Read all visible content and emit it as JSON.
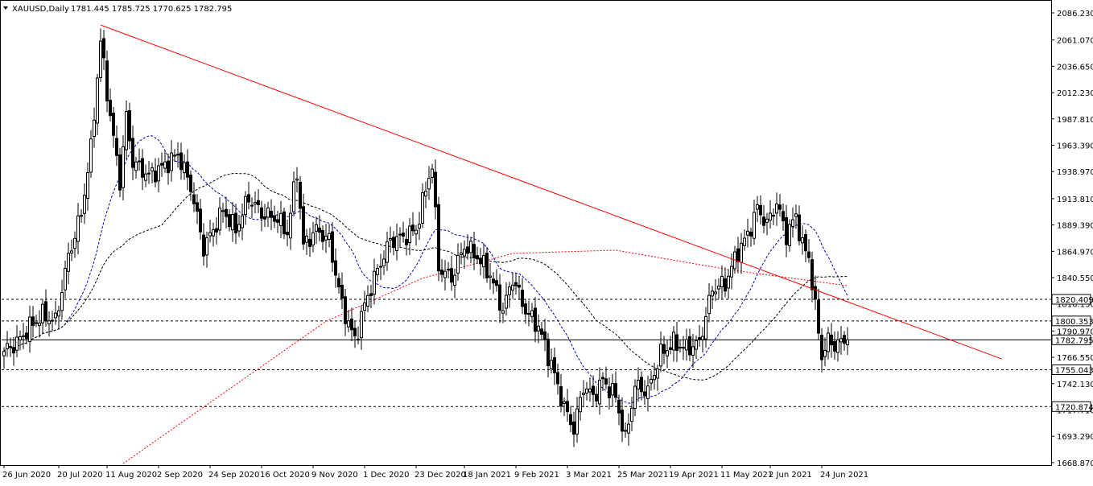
{
  "header": {
    "symbol_timeframe": "XAUUSD,Daily",
    "ohlc": "1781.445 1785.725 1770.625 1782.795",
    "dropdown_icon": "triangle-down-icon"
  },
  "chart_data": {
    "type": "candlestick",
    "symbol": "XAUUSD",
    "timeframe": "Daily",
    "ylim": [
      1668.07,
      2086.23
    ],
    "y_ticks": [
      "2086.230",
      "2061.070",
      "2036.650",
      "2012.230",
      "1987.810",
      "1963.390",
      "1938.970",
      "1913.810",
      "1889.390",
      "1864.970",
      "1840.550",
      "1816.130",
      "1790.970",
      "1766.550",
      "1742.130",
      "1717.710",
      "1693.290",
      "1668.870"
    ],
    "x_ticks": [
      "26 Jun 2020",
      "20 Jul 2020",
      "11 Aug 2020",
      "2 Sep 2020",
      "24 Sep 2020",
      "16 Oct 2020",
      "9 Nov 2020",
      "1 Dec 2020",
      "23 Dec 2020",
      "18 Jan 2021",
      "9 Feb 2021",
      "3 Mar 2021",
      "25 Mar 2021",
      "19 Apr 2021",
      "11 May 2021",
      "2 Jun 2021",
      "24 Jun 2021"
    ],
    "x_tick_index": [
      0,
      17,
      32,
      48,
      64,
      80,
      96,
      112,
      128,
      143,
      159,
      175,
      191,
      207,
      223,
      238,
      254
    ],
    "bar_count": 263,
    "key_closes": [
      [
        0,
        1772
      ],
      [
        4,
        1780
      ],
      [
        8,
        1795
      ],
      [
        12,
        1806
      ],
      [
        16,
        1800
      ],
      [
        20,
        1860
      ],
      [
        24,
        1900
      ],
      [
        27,
        1960
      ],
      [
        30,
        2060
      ],
      [
        33,
        1990
      ],
      [
        36,
        1930
      ],
      [
        38,
        1990
      ],
      [
        40,
        1948
      ],
      [
        45,
        1935
      ],
      [
        50,
        1945
      ],
      [
        54,
        1955
      ],
      [
        58,
        1925
      ],
      [
        62,
        1868
      ],
      [
        65,
        1885
      ],
      [
        68,
        1903
      ],
      [
        72,
        1885
      ],
      [
        76,
        1915
      ],
      [
        80,
        1900
      ],
      [
        85,
        1895
      ],
      [
        88,
        1882
      ],
      [
        91,
        1940
      ],
      [
        93,
        1870
      ],
      [
        97,
        1885
      ],
      [
        101,
        1875
      ],
      [
        105,
        1815
      ],
      [
        109,
        1782
      ],
      [
        112,
        1815
      ],
      [
        115,
        1840
      ],
      [
        120,
        1875
      ],
      [
        124,
        1878
      ],
      [
        128,
        1885
      ],
      [
        132,
        1935
      ],
      [
        133,
        1945
      ],
      [
        135,
        1850
      ],
      [
        139,
        1840
      ],
      [
        143,
        1870
      ],
      [
        147,
        1860
      ],
      [
        151,
        1843
      ],
      [
        155,
        1810
      ],
      [
        158,
        1840
      ],
      [
        162,
        1810
      ],
      [
        166,
        1795
      ],
      [
        170,
        1760
      ],
      [
        174,
        1720
      ],
      [
        177,
        1700
      ],
      [
        180,
        1740
      ],
      [
        183,
        1730
      ],
      [
        186,
        1745
      ],
      [
        190,
        1730
      ],
      [
        193,
        1690
      ],
      [
        196,
        1740
      ],
      [
        200,
        1735
      ],
      [
        204,
        1770
      ],
      [
        208,
        1780
      ],
      [
        212,
        1775
      ],
      [
        216,
        1780
      ],
      [
        220,
        1830
      ],
      [
        224,
        1835
      ],
      [
        228,
        1865
      ],
      [
        231,
        1880
      ],
      [
        234,
        1905
      ],
      [
        237,
        1890
      ],
      [
        240,
        1910
      ],
      [
        243,
        1880
      ],
      [
        246,
        1898
      ],
      [
        248,
        1870
      ],
      [
        250,
        1860
      ],
      [
        252,
        1812
      ],
      [
        254,
        1768
      ],
      [
        256,
        1782
      ],
      [
        258,
        1778
      ],
      [
        262,
        1782.795
      ]
    ],
    "trend_line": {
      "from": [
        30,
        2075
      ],
      "to": [
        310,
        1765
      ],
      "color": "#ff0000"
    },
    "levels": [
      {
        "value": 1820.409,
        "label": "1820.409",
        "style": "dashed"
      },
      {
        "value": 1800.353,
        "label": "1800.353",
        "style": "dashed"
      },
      {
        "value": 1782.795,
        "label": "1782.795",
        "style": "solid"
      },
      {
        "value": 1755.043,
        "label": "1755.043",
        "style": "dashed"
      },
      {
        "value": 1720.874,
        "label": "1720.874",
        "style": "dashed"
      }
    ],
    "moving_averages": [
      {
        "color": "#0000c0",
        "style": "dashed",
        "period": 20
      },
      {
        "color": "#000000",
        "style": "dashed",
        "period": 50
      },
      {
        "color": "#ff0000",
        "style": "dotted",
        "period": 200,
        "anchor": [
          [
            37,
            1668
          ],
          [
            100,
            1800
          ],
          [
            130,
            1840
          ],
          [
            158,
            1863
          ],
          [
            190,
            1866
          ],
          [
            225,
            1848
          ],
          [
            262,
            1833
          ]
        ]
      }
    ],
    "colors": {
      "candle": "#000000",
      "background": "#ffffff",
      "axis": "#000000"
    }
  }
}
